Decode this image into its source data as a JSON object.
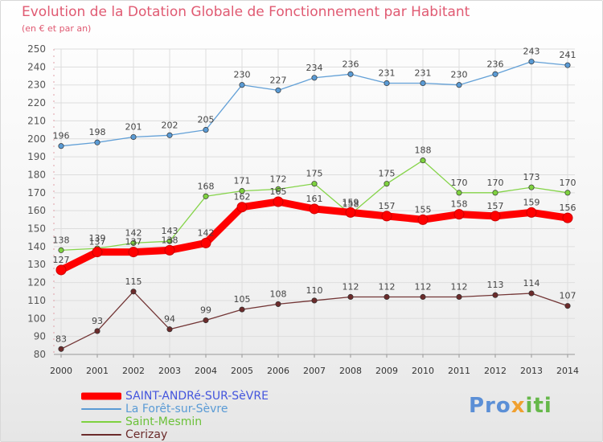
{
  "header": {
    "title": "Evolution de la Dotation Globale de Fonctionnement par Habitant",
    "subtitle": "(en € et par an)"
  },
  "logo_text": [
    "Pro",
    "x",
    "iti"
  ],
  "colors": {
    "axis_text": "#555555",
    "grid": "#dddddd",
    "title": "#e05a72"
  },
  "chart_data": {
    "type": "line",
    "title": "Evolution de la Dotation Globale de Fonctionnement par Habitant",
    "subtitle": "(en € et par an)",
    "x": [
      "2000",
      "2001",
      "2002",
      "2003",
      "2004",
      "2005",
      "2006",
      "2007",
      "2008",
      "2009",
      "2010",
      "2011",
      "2012",
      "2013",
      "2014"
    ],
    "ylim": [
      80,
      250
    ],
    "yticks": [
      80,
      90,
      100,
      110,
      120,
      130,
      140,
      150,
      160,
      170,
      180,
      190,
      200,
      210,
      220,
      230,
      240,
      250
    ],
    "grid": true,
    "legend": "bottom-left",
    "series": [
      {
        "name": "SAINT-ANDRé-SUR-SèVRE",
        "color": "#ff0000",
        "highlight": true,
        "legend_color": "#4455dd",
        "values": [
          127,
          137,
          137,
          138,
          142,
          162,
          165,
          161,
          159,
          157,
          155,
          158,
          157,
          159,
          156
        ]
      },
      {
        "name": "La Forêt-sur-Sèvre",
        "color": "#5a9bd5",
        "highlight": false,
        "legend_color": "#5a9bd5",
        "values": [
          196,
          198,
          201,
          202,
          205,
          230,
          227,
          234,
          236,
          231,
          231,
          230,
          236,
          243,
          241
        ]
      },
      {
        "name": "Saint-Mesmin",
        "color": "#7ed23f",
        "highlight": false,
        "legend_color": "#6cc13a",
        "values": [
          138,
          139,
          142,
          143,
          168,
          171,
          172,
          175,
          158,
          175,
          188,
          170,
          170,
          173,
          170
        ]
      },
      {
        "name": "Cerizay",
        "color": "#6b2b2b",
        "highlight": false,
        "legend_color": "#6b2b2b",
        "values": [
          83,
          93,
          115,
          94,
          99,
          105,
          108,
          110,
          112,
          112,
          112,
          112,
          113,
          114,
          107
        ]
      }
    ]
  }
}
